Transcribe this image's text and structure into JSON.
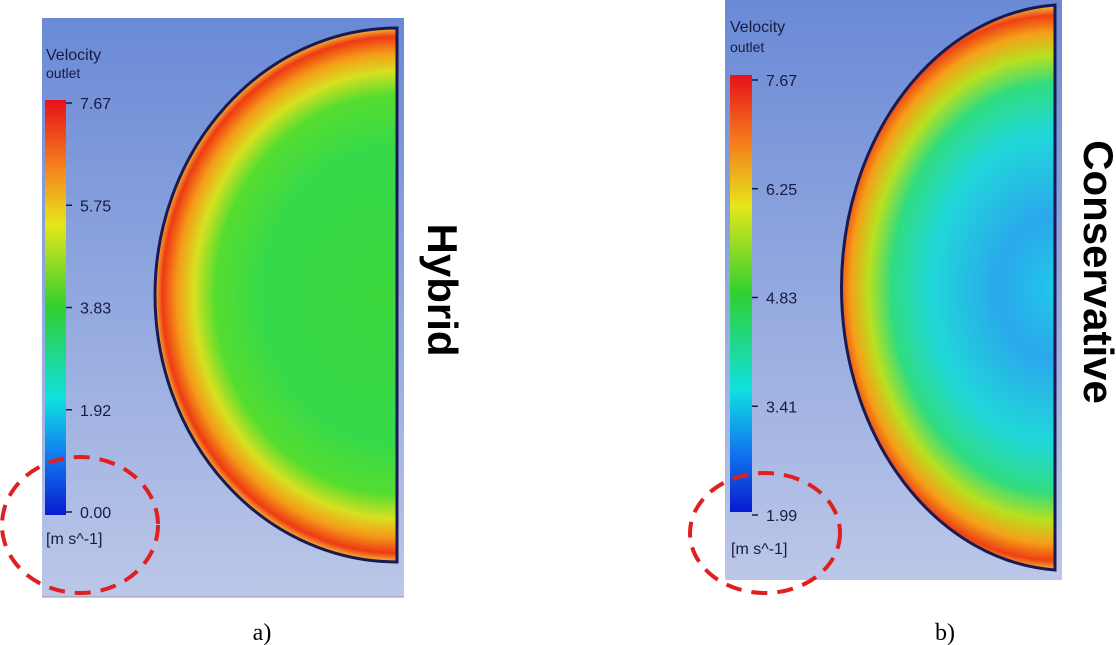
{
  "panels": [
    {
      "label": "a)",
      "title": "Hybrid",
      "legend": {
        "title": "Velocity",
        "subtitle": "outlet",
        "ticks": [
          "7.67",
          "5.75",
          "3.83",
          "1.92",
          "0.00"
        ],
        "unit": "[m s^-1]"
      }
    },
    {
      "label": "b)",
      "title": "Conservative",
      "legend": {
        "title": "Velocity",
        "subtitle": "outlet",
        "ticks": [
          "7.67",
          "6.25",
          "4.83",
          "3.41",
          "1.99"
        ],
        "unit": "[m s^-1]"
      }
    }
  ]
}
